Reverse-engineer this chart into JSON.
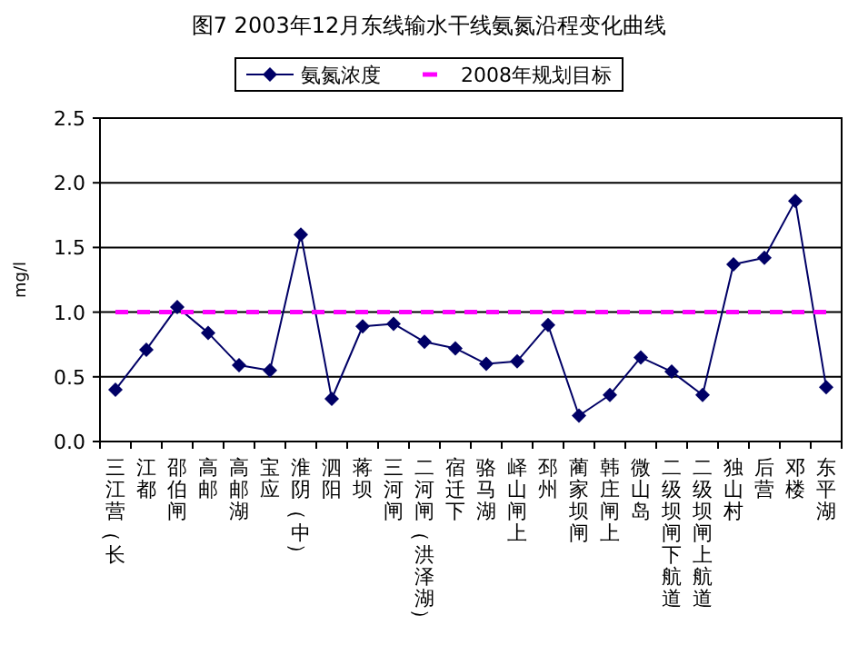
{
  "chart_data": {
    "type": "line",
    "title": "图7 2003年12月东线输水干线氨氮沿程变化曲线",
    "ylabel": "mg/l",
    "categories": [
      "三江营（长",
      "江都",
      "邵伯闸",
      "高邮",
      "高邮湖",
      "宝应",
      "淮阴（中）",
      "泗阳",
      "蒋坝",
      "三河闸",
      "二河闸（洪泽湖）",
      "宿迁下",
      "骆马湖",
      "峄山闸上",
      "邳州",
      "蔺家坝闸",
      "韩庄闸上",
      "微山岛",
      "二级坝闸下航道",
      "二级坝闸上航道",
      "独山村",
      "后营",
      "邓楼",
      "东平湖"
    ],
    "series": [
      {
        "name": "氨氮浓度",
        "color": "#000066",
        "marker": "diamond",
        "line_style": "solid",
        "values": [
          0.4,
          0.71,
          1.04,
          0.84,
          0.59,
          0.55,
          1.6,
          0.33,
          0.89,
          0.91,
          0.77,
          0.72,
          0.6,
          0.62,
          0.9,
          0.2,
          0.36,
          0.65,
          0.54,
          0.36,
          1.37,
          1.42,
          1.86,
          0.42
        ]
      },
      {
        "name": "2008年规划目标",
        "color": "#ff00ff",
        "marker": "none",
        "line_style": "dashed",
        "values": [
          1.0,
          1.0,
          1.0,
          1.0,
          1.0,
          1.0,
          1.0,
          1.0,
          1.0,
          1.0,
          1.0,
          1.0,
          1.0,
          1.0,
          1.0,
          1.0,
          1.0,
          1.0,
          1.0,
          1.0,
          1.0,
          1.0,
          1.0,
          1.0
        ]
      }
    ],
    "ylim": [
      0,
      2.5
    ],
    "yticks": [
      {
        "value": 0,
        "label": "0.0"
      },
      {
        "value": 0.5,
        "label": "0.5"
      },
      {
        "value": 1,
        "label": "1.0"
      },
      {
        "value": 1.5,
        "label": "1.5"
      },
      {
        "value": 2,
        "label": "2.0"
      },
      {
        "value": 2.5,
        "label": "2.5"
      }
    ],
    "grid": "y",
    "legend": "top"
  }
}
